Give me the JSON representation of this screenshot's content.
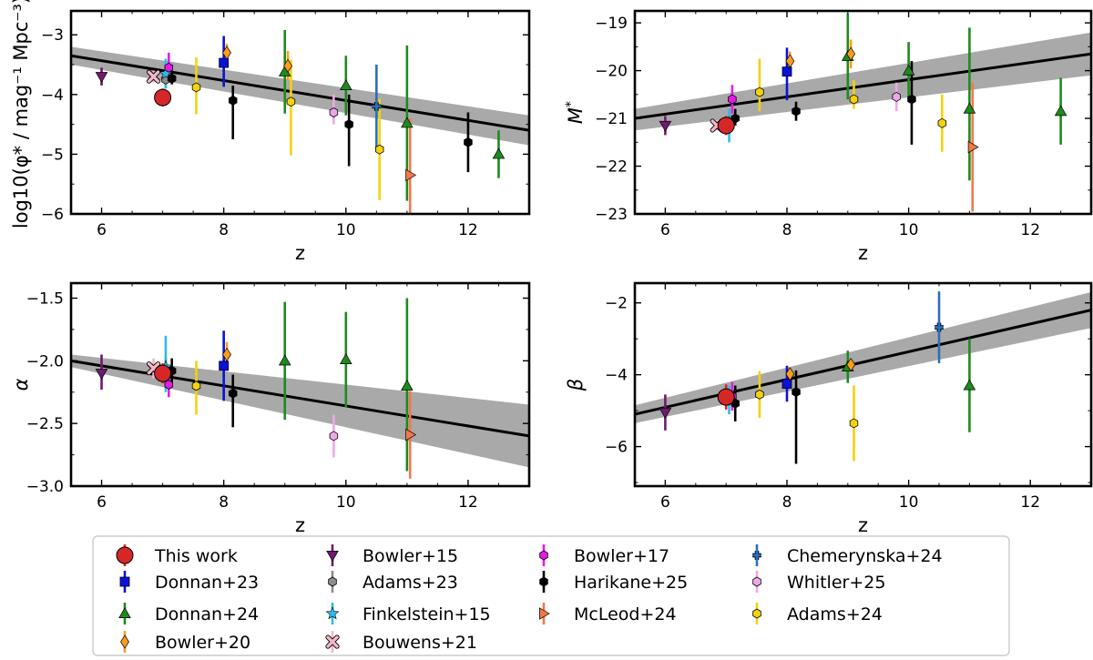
{
  "chart_data": [
    {
      "type": "scatter",
      "panel": "phi-star",
      "xlabel": "z",
      "ylabel": "log10(φ* / mag⁻¹ Mpc⁻³)",
      "xlim": [
        5.5,
        13
      ],
      "ylim": [
        -6,
        -2.6
      ],
      "xticks": [
        6,
        8,
        10,
        12
      ],
      "xtick_labels": [
        "6",
        "8",
        "10",
        "12"
      ],
      "yticks": [
        -6,
        -5,
        -4,
        -3
      ],
      "ytick_labels": [
        "−6",
        "−5",
        "−4",
        "−3"
      ],
      "fit": {
        "x": [
          5.5,
          13
        ],
        "y": [
          -3.35,
          -4.6
        ],
        "band_lo": [
          -3.5,
          -4.85
        ],
        "band_hi": [
          -3.2,
          -4.35
        ]
      },
      "series": [
        {
          "name": "This work",
          "points": [
            [
              7.0,
              -4.05,
              0.15,
              0.15
            ]
          ]
        },
        {
          "name": "Donnan+23",
          "points": [
            [
              8.0,
              -3.47,
              0.4,
              0.45
            ]
          ]
        },
        {
          "name": "Donnan+24",
          "points": [
            [
              9.0,
              -3.62,
              0.7,
              0.7
            ],
            [
              10.0,
              -3.85,
              0.5,
              0.5
            ],
            [
              11.0,
              -4.48,
              1.3,
              1.3
            ],
            [
              12.5,
              -5.0,
              0.4,
              0.4
            ]
          ]
        },
        {
          "name": "Bowler+20",
          "points": [
            [
              8.05,
              -3.3,
              0.15,
              0.15
            ],
            [
              9.05,
              -3.52,
              0.25,
              0.25
            ]
          ]
        },
        {
          "name": "Bowler+15",
          "points": [
            [
              6.0,
              -3.7,
              0.15,
              0.15
            ]
          ]
        },
        {
          "name": "Adams+23",
          "points": [
            [
              7.05,
              -3.75,
              0.15,
              0.15
            ]
          ]
        },
        {
          "name": "Finkelstein+15",
          "points": [
            [
              7.05,
              -3.65,
              0.25,
              0.25
            ]
          ]
        },
        {
          "name": "Bouwens+21",
          "points": [
            [
              6.85,
              -3.7,
              0.1,
              0.1
            ]
          ]
        },
        {
          "name": "Bowler+17",
          "points": [
            [
              7.1,
              -3.55,
              0.25,
              0.25
            ]
          ]
        },
        {
          "name": "Harikane+25",
          "points": [
            [
              7.15,
              -3.73,
              0.1,
              0.1
            ],
            [
              8.15,
              -4.1,
              0.65,
              0.25
            ],
            [
              10.05,
              -4.5,
              0.7,
              0.5
            ],
            [
              12.0,
              -4.8,
              0.5,
              0.5
            ]
          ]
        },
        {
          "name": "McLeod+24",
          "points": [
            [
              11.05,
              -5.35,
              0.95,
              0.95
            ]
          ]
        },
        {
          "name": "Chemerynska+24",
          "points": [
            [
              10.5,
              -4.2,
              0.7,
              0.7
            ]
          ]
        },
        {
          "name": "Whitler+25",
          "points": [
            [
              9.8,
              -4.3,
              0.2,
              0.3
            ]
          ]
        },
        {
          "name": "Adams+24",
          "points": [
            [
              7.55,
              -3.88,
              0.45,
              0.5
            ],
            [
              9.1,
              -4.12,
              0.9,
              0.7
            ],
            [
              10.55,
              -4.92,
              0.85,
              0.85
            ]
          ]
        }
      ]
    },
    {
      "type": "scatter",
      "panel": "m-star",
      "xlabel": "z",
      "ylabel": "M*",
      "xlim": [
        5.5,
        13
      ],
      "ylim": [
        -23,
        -18.75
      ],
      "xticks": [
        6,
        8,
        10,
        12
      ],
      "xtick_labels": [
        "6",
        "8",
        "10",
        "12"
      ],
      "yticks": [
        -23,
        -22,
        -21,
        -20,
        -19
      ],
      "ytick_labels": [
        "−23",
        "−22",
        "−21",
        "−20",
        "−19"
      ],
      "fit": {
        "x": [
          5.5,
          13
        ],
        "y": [
          -21.0,
          -19.65
        ],
        "band_lo": [
          -21.25,
          -20.1
        ],
        "band_hi": [
          -20.8,
          -19.2
        ]
      },
      "series": [
        {
          "name": "This work",
          "points": [
            [
              7.0,
              -21.15,
              0.2,
              0.2
            ]
          ]
        },
        {
          "name": "Donnan+23",
          "points": [
            [
              8.0,
              -20.02,
              0.6,
              0.5
            ]
          ]
        },
        {
          "name": "Donnan+24",
          "points": [
            [
              9.0,
              -19.7,
              0.9,
              0.9
            ],
            [
              10.0,
              -20.0,
              0.6,
              0.6
            ],
            [
              11.0,
              -20.8,
              1.5,
              1.7
            ],
            [
              12.5,
              -20.85,
              0.7,
              0.7
            ]
          ]
        },
        {
          "name": "Bowler+20",
          "points": [
            [
              8.05,
              -19.8,
              0.25,
              0.2
            ],
            [
              9.05,
              -19.65,
              0.3,
              0.3
            ]
          ]
        },
        {
          "name": "Bowler+15",
          "points": [
            [
              6.0,
              -21.15,
              0.2,
              0.2
            ]
          ]
        },
        {
          "name": "Adams+23",
          "points": [
            [
              7.05,
              -21.1,
              0.2,
              0.2
            ]
          ]
        },
        {
          "name": "Finkelstein+15",
          "points": [
            [
              7.05,
              -21.1,
              0.4,
              0.3
            ]
          ]
        },
        {
          "name": "Bouwens+21",
          "points": [
            [
              6.85,
              -21.15,
              0.1,
              0.1
            ]
          ]
        },
        {
          "name": "Bowler+17",
          "points": [
            [
              7.1,
              -20.6,
              0.3,
              0.3
            ]
          ]
        },
        {
          "name": "Harikane+25",
          "points": [
            [
              7.15,
              -21.0,
              0.15,
              0.2
            ],
            [
              8.15,
              -20.85,
              0.2,
              0.2
            ],
            [
              10.05,
              -20.6,
              0.95,
              0.8
            ]
          ]
        },
        {
          "name": "McLeod+24",
          "points": [
            [
              11.05,
              -21.6,
              1.35,
              1.35
            ]
          ]
        },
        {
          "name": "Whitler+25",
          "points": [
            [
              9.8,
              -20.55,
              0.3,
              0.3
            ]
          ]
        },
        {
          "name": "Adams+24",
          "points": [
            [
              7.55,
              -20.45,
              0.4,
              0.7
            ],
            [
              9.1,
              -20.6,
              0.2,
              0.4
            ],
            [
              10.55,
              -21.1,
              0.6,
              0.6
            ]
          ]
        }
      ]
    },
    {
      "type": "scatter",
      "panel": "alpha",
      "xlabel": "z",
      "ylabel": "α",
      "xlim": [
        5.5,
        13
      ],
      "ylim": [
        -3.0,
        -1.38
      ],
      "xticks": [
        6,
        8,
        10,
        12
      ],
      "xtick_labels": [
        "6",
        "8",
        "10",
        "12"
      ],
      "yticks": [
        -3.0,
        -2.5,
        -2.0,
        -1.5
      ],
      "ytick_labels": [
        "−3.0",
        "−2.5",
        "−2.0",
        "−1.5"
      ],
      "fit": {
        "x": [
          5.5,
          13
        ],
        "y": [
          -2.0,
          -2.6
        ],
        "band_lo": [
          -2.05,
          -2.85
        ],
        "band_hi": [
          -1.95,
          -2.35
        ]
      },
      "series": [
        {
          "name": "This work",
          "points": [
            [
              7.0,
              -2.1,
              0.08,
              0.08
            ]
          ]
        },
        {
          "name": "Donnan+23",
          "points": [
            [
              8.0,
              -2.04,
              0.28,
              0.28
            ]
          ]
        },
        {
          "name": "Donnan+24",
          "points": [
            [
              9.0,
              -2.0,
              0.47,
              0.47
            ],
            [
              10.0,
              -1.99,
              0.38,
              0.38
            ],
            [
              11.0,
              -2.2,
              0.68,
              0.7
            ]
          ]
        },
        {
          "name": "Bowler+20",
          "points": [
            [
              8.05,
              -1.95,
              0.1,
              0.1
            ]
          ]
        },
        {
          "name": "Bowler+15",
          "points": [
            [
              6.0,
              -2.1,
              0.13,
              0.15
            ]
          ]
        },
        {
          "name": "Adams+23",
          "points": [
            [
              7.05,
              -2.07,
              0.1,
              0.1
            ]
          ]
        },
        {
          "name": "Finkelstein+15",
          "points": [
            [
              7.05,
              -2.05,
              0.2,
              0.25
            ]
          ]
        },
        {
          "name": "Bouwens+21",
          "points": [
            [
              6.85,
              -2.06,
              0.08,
              0.08
            ]
          ]
        },
        {
          "name": "Bowler+17",
          "points": [
            [
              7.1,
              -2.19,
              0.1,
              0.1
            ]
          ]
        },
        {
          "name": "Harikane+25",
          "points": [
            [
              7.15,
              -2.08,
              0.1,
              0.1
            ],
            [
              8.15,
              -2.26,
              0.27,
              0.15
            ]
          ]
        },
        {
          "name": "McLeod+24",
          "points": [
            [
              11.05,
              -2.59,
              0.35,
              0.35
            ]
          ]
        },
        {
          "name": "Whitler+25",
          "points": [
            [
              9.8,
              -2.6,
              0.17,
              0.17
            ]
          ]
        },
        {
          "name": "Adams+24",
          "points": [
            [
              7.55,
              -2.2,
              0.23,
              0.2
            ]
          ]
        }
      ]
    },
    {
      "type": "scatter",
      "panel": "beta",
      "xlabel": "z",
      "ylabel": "β",
      "xlim": [
        5.5,
        13
      ],
      "ylim": [
        -7.1,
        -1.45
      ],
      "xticks": [
        6,
        8,
        10,
        12
      ],
      "xtick_labels": [
        "6",
        "8",
        "10",
        "12"
      ],
      "yticks": [
        -6,
        -4,
        -2
      ],
      "ytick_labels": [
        "−6",
        "−4",
        "−2"
      ],
      "fit": {
        "x": [
          5.5,
          13
        ],
        "y": [
          -5.1,
          -2.2
        ],
        "band_lo": [
          -5.35,
          -2.7
        ],
        "band_hi": [
          -4.85,
          -1.7
        ]
      },
      "series": [
        {
          "name": "This work",
          "points": [
            [
              7.0,
              -4.62,
              0.35,
              0.35
            ]
          ]
        },
        {
          "name": "Donnan+23",
          "points": [
            [
              8.0,
              -4.25,
              0.5,
              0.5
            ]
          ]
        },
        {
          "name": "Donnan+24",
          "points": [
            [
              9.0,
              -3.78,
              0.45,
              0.45
            ],
            [
              11.0,
              -4.3,
              1.3,
              1.3
            ]
          ]
        },
        {
          "name": "Bowler+20",
          "points": [
            [
              8.05,
              -3.98,
              0.2,
              0.2
            ],
            [
              9.05,
              -3.72,
              0.15,
              0.15
            ]
          ]
        },
        {
          "name": "Bowler+15",
          "points": [
            [
              6.0,
              -5.05,
              0.5,
              0.5
            ]
          ]
        },
        {
          "name": "Finkelstein+15",
          "points": [
            [
              7.05,
              -4.7,
              0.4,
              0.4
            ]
          ]
        },
        {
          "name": "Bowler+17",
          "points": [
            [
              7.1,
              -4.6,
              0.4,
              0.4
            ]
          ]
        },
        {
          "name": "Harikane+25",
          "points": [
            [
              7.15,
              -4.8,
              0.5,
              0.5
            ],
            [
              8.15,
              -4.48,
              2.0,
              0.6
            ]
          ]
        },
        {
          "name": "Chemerynska+24",
          "points": [
            [
              10.5,
              -2.68,
              1.0,
              1.0
            ]
          ]
        },
        {
          "name": "Adams+24",
          "points": [
            [
              7.55,
              -4.55,
              0.65,
              0.65
            ],
            [
              9.1,
              -5.35,
              1.05,
              1.05
            ]
          ]
        }
      ]
    }
  ],
  "styles": {
    "This work": {
      "color": "#d62728",
      "marker": "circle-big"
    },
    "Donnan+23": {
      "color": "#0b12d8",
      "marker": "square"
    },
    "Donnan+24": {
      "color": "#1e8a1e",
      "marker": "triangle-up"
    },
    "Bowler+20": {
      "color": "#ff9d1a",
      "marker": "diamond"
    },
    "Bowler+15": {
      "color": "#6e1a6e",
      "marker": "triangle-down"
    },
    "Adams+23": {
      "color": "#8c8c8c",
      "marker": "hexagon"
    },
    "Finkelstein+15": {
      "color": "#2bbde8",
      "marker": "star"
    },
    "Bouwens+21": {
      "color": "#f2b8c8",
      "marker": "x-circle"
    },
    "Bowler+17": {
      "color": "#e51ce5",
      "marker": "hexagon"
    },
    "Harikane+25": {
      "color": "#000000",
      "marker": "hexagon"
    },
    "McLeod+24": {
      "color": "#f4784c",
      "marker": "triangle-right"
    },
    "Chemerynska+24": {
      "color": "#2a6fb8",
      "marker": "plus"
    },
    "Whitler+25": {
      "color": "#eea7e8",
      "marker": "hexagon"
    },
    "Adams+24": {
      "color": "#f5d20b",
      "marker": "hexagon"
    }
  },
  "legend": [
    "This work",
    "Bowler+15",
    "Bowler+17",
    "Chemerynska+24",
    "Donnan+23",
    "Adams+23",
    "Harikane+25",
    "Whitler+25",
    "Donnan+24",
    "Finkelstein+15",
    "McLeod+24",
    "Adams+24",
    "Bowler+20",
    "Bouwens+21"
  ]
}
